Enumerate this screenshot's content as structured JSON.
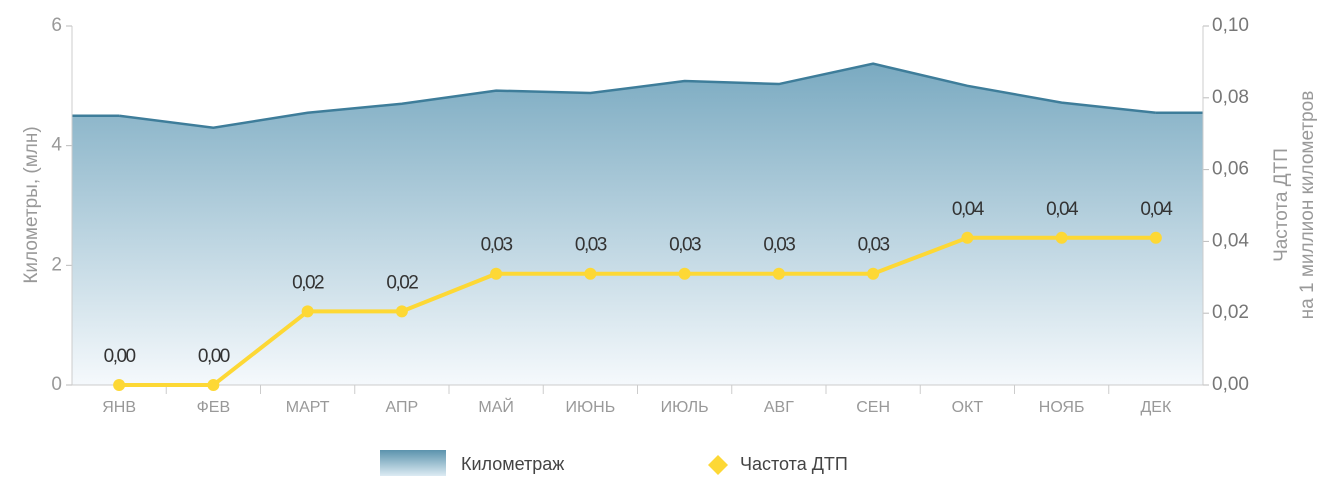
{
  "chart_data": {
    "type": "line",
    "categories": [
      "ЯНВ",
      "ФЕВ",
      "МАРТ",
      "АПР",
      "МАЙ",
      "ИЮНЬ",
      "ИЮЛЬ",
      "АВГ",
      "СЕН",
      "ОКТ",
      "НОЯБ",
      "ДЕК"
    ],
    "series": [
      {
        "name": "Километраж",
        "type": "area",
        "axis": "y",
        "color": "#3e7d9a",
        "values": [
          4.5,
          4.3,
          4.55,
          4.7,
          4.92,
          4.88,
          5.08,
          5.03,
          5.37,
          5.0,
          4.72,
          4.55
        ]
      },
      {
        "name": "Частота ДТП",
        "type": "line",
        "axis": "y2",
        "color": "#fdd835",
        "values": [
          0,
          0,
          0.0205,
          0.0205,
          0.031,
          0.031,
          0.031,
          0.031,
          0.031,
          0.041,
          0.041,
          0.041
        ],
        "value_labels": [
          "0,00",
          "0,00",
          "0,02",
          "0,02",
          "0,03",
          "0,03",
          "0,03",
          "0,03",
          "0,03",
          "0,04",
          "0,04",
          "0,04"
        ]
      }
    ],
    "y_label": "Километры, (млн)",
    "y2_label": [
      "Частота ДТП",
      "на 1 миллион километров"
    ],
    "ylim": [
      0,
      6
    ],
    "yticks": [
      0,
      2,
      4,
      6
    ],
    "y2lim": [
      0,
      0.1
    ],
    "y2ticks": [
      {
        "value": 0,
        "label": "0,00"
      },
      {
        "value": 0.02,
        "label": "0,02"
      },
      {
        "value": 0.04,
        "label": "0,04"
      },
      {
        "value": 0.06,
        "label": "0,06"
      },
      {
        "value": 0.08,
        "label": "0,08"
      },
      {
        "value": 0.1,
        "label": "0,10"
      }
    ]
  }
}
